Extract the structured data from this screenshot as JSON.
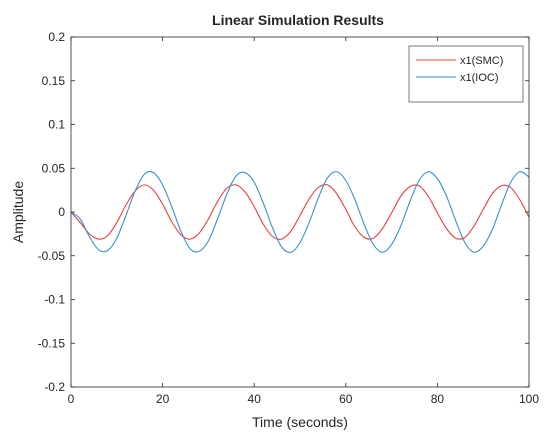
{
  "chart_data": {
    "type": "line",
    "title": "Linear Simulation Results",
    "xlabel": "Time (seconds)",
    "ylabel": "Amplitude",
    "xlim": [
      0,
      100
    ],
    "ylim": [
      -0.2,
      0.2
    ],
    "xticks": [
      0,
      20,
      40,
      60,
      80,
      100
    ],
    "yticks": [
      -0.2,
      -0.15,
      -0.1,
      -0.05,
      0,
      0.05,
      0.1,
      0.15,
      0.2
    ],
    "xtick_labels": [
      "0",
      "20",
      "40",
      "60",
      "80",
      "100"
    ],
    "ytick_labels": [
      "-0.2",
      "-0.15",
      "-0.1",
      "-0.05",
      "0",
      "0.05",
      "0.1",
      "0.15",
      "0.2"
    ],
    "grid": false,
    "legend_position": "top-right",
    "series": [
      {
        "name": "x1(SMC)",
        "color": "#e8403a",
        "x": [
          0,
          2,
          4,
          6,
          8,
          10,
          12,
          14,
          16,
          18,
          20,
          22,
          24,
          26,
          28,
          30,
          32,
          34,
          36,
          38,
          40,
          42,
          44,
          46,
          48,
          50,
          52,
          54,
          56,
          58,
          60,
          62,
          64,
          66,
          68,
          70,
          72,
          74,
          76,
          78,
          80,
          82,
          84,
          86,
          88,
          90,
          92,
          94,
          96,
          98,
          100
        ],
        "y": [
          0,
          -0.012,
          -0.025,
          -0.031,
          -0.027,
          -0.012,
          0.008,
          0.024,
          0.031,
          0.025,
          0.009,
          -0.011,
          -0.026,
          -0.031,
          -0.024,
          -0.008,
          0.012,
          0.027,
          0.031,
          0.023,
          0.006,
          -0.014,
          -0.028,
          -0.031,
          -0.022,
          -0.004,
          0.015,
          0.028,
          0.031,
          0.021,
          0.003,
          -0.017,
          -0.029,
          -0.03,
          -0.019,
          -0.001,
          0.018,
          0.029,
          0.03,
          0.018,
          -0.001,
          -0.019,
          -0.03,
          -0.029,
          -0.016,
          0.003,
          0.021,
          0.03,
          0.028,
          0.014,
          -0.006
        ]
      },
      {
        "name": "x1(IOC)",
        "color": "#3a8fd0",
        "x": [
          0,
          2,
          4,
          6,
          8,
          10,
          12,
          14,
          16,
          18,
          20,
          22,
          24,
          26,
          28,
          30,
          32,
          34,
          36,
          38,
          40,
          42,
          44,
          46,
          48,
          50,
          52,
          54,
          56,
          58,
          60,
          62,
          64,
          66,
          68,
          70,
          72,
          74,
          76,
          78,
          80,
          82,
          84,
          86,
          88,
          90,
          92,
          94,
          96,
          98,
          100
        ],
        "y": [
          0,
          -0.008,
          -0.028,
          -0.043,
          -0.044,
          -0.03,
          -0.004,
          0.024,
          0.043,
          0.045,
          0.031,
          0.006,
          -0.022,
          -0.042,
          -0.045,
          -0.033,
          -0.008,
          0.02,
          0.041,
          0.045,
          0.034,
          0.01,
          -0.018,
          -0.04,
          -0.046,
          -0.035,
          -0.012,
          0.016,
          0.039,
          0.046,
          0.036,
          0.014,
          -0.014,
          -0.037,
          -0.046,
          -0.037,
          -0.016,
          0.012,
          0.036,
          0.046,
          0.038,
          0.018,
          -0.01,
          -0.035,
          -0.046,
          -0.039,
          -0.02,
          0.008,
          0.034,
          0.046,
          0.04
        ]
      }
    ]
  }
}
